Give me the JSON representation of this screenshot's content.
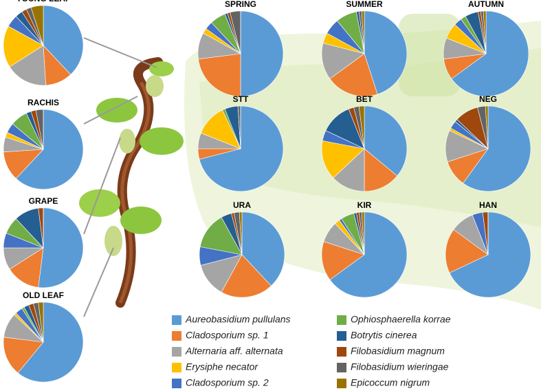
{
  "legend": {
    "labels": [
      "Aureobasidium pullulans",
      "Cladosporium sp. 1",
      "Alternaria aff. alternata",
      "Erysiphe necator",
      "Cladosporium sp. 2",
      "Ophiosphaerella korrae",
      "Botrytis cinerea",
      "Filobasidium magnum",
      "Filobasidium wieringae",
      "Epicoccum nigrum"
    ],
    "colors": [
      "#5b9bd5",
      "#ed7d31",
      "#a5a5a5",
      "#ffc000",
      "#4472c4",
      "#70ad47",
      "#255e91",
      "#9e480e",
      "#636363",
      "#997300"
    ]
  },
  "chart_data": [
    {
      "type": "pie",
      "title": "YOUNG LEAF",
      "values": [
        38,
        11,
        17,
        17,
        5,
        0,
        3,
        2,
        2,
        5
      ]
    },
    {
      "type": "pie",
      "title": "RACHIS",
      "values": [
        62,
        12,
        6,
        2,
        4,
        7,
        2,
        2,
        3,
        0
      ]
    },
    {
      "type": "pie",
      "title": "GRAPE",
      "values": [
        52,
        14,
        9,
        0,
        6,
        7,
        10,
        2,
        0,
        0
      ]
    },
    {
      "type": "pie",
      "title": "OLD LEAF",
      "values": [
        61,
        16,
        10,
        1,
        3,
        1,
        2,
        2,
        2,
        2
      ]
    },
    {
      "type": "pie",
      "title": "SPRING",
      "values": [
        50,
        23,
        10,
        2,
        3,
        6,
        1,
        1,
        4,
        0
      ]
    },
    {
      "type": "pie",
      "title": "SUMMER",
      "values": [
        45,
        20,
        14,
        4,
        6,
        8,
        1,
        0,
        1,
        1
      ]
    },
    {
      "type": "pie",
      "title": "AUTUMN",
      "values": [
        65,
        8,
        8,
        6,
        3,
        2,
        5,
        1,
        1,
        1
      ]
    },
    {
      "type": "pie",
      "title": "STT",
      "values": [
        71,
        4,
        6,
        12,
        0,
        1,
        5,
        0,
        1,
        0
      ]
    },
    {
      "type": "pie",
      "title": "BET",
      "values": [
        36,
        14,
        13,
        15,
        4,
        0,
        12,
        2,
        2,
        2
      ]
    },
    {
      "type": "pie",
      "title": "NEG",
      "values": [
        60,
        10,
        12,
        1,
        3,
        0,
        1,
        9,
        3,
        1
      ]
    },
    {
      "type": "pie",
      "title": "URA",
      "values": [
        38,
        20,
        13,
        0,
        7,
        14,
        4,
        1,
        2,
        1
      ]
    },
    {
      "type": "pie",
      "title": "KIR",
      "values": [
        65,
        15,
        8,
        2,
        1,
        5,
        1,
        1,
        1,
        1
      ]
    },
    {
      "type": "pie",
      "title": "HAN",
      "values": [
        68,
        17,
        9,
        0,
        4,
        0,
        0,
        2,
        0,
        0
      ]
    }
  ]
}
